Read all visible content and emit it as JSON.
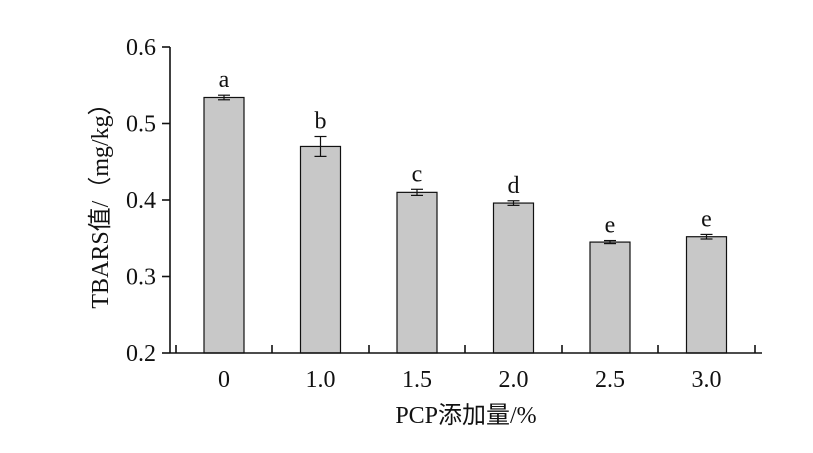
{
  "chart_data": {
    "type": "bar",
    "xlabel": "PCP添加量/%",
    "ylabel": "TBARS值/（mg/kg）",
    "categories": [
      "0",
      "1.0",
      "1.5",
      "2.0",
      "2.5",
      "3.0"
    ],
    "values": [
      0.534,
      0.47,
      0.41,
      0.396,
      0.345,
      0.352
    ],
    "errors": [
      0.003,
      0.013,
      0.004,
      0.003,
      0.002,
      0.003
    ],
    "significance": [
      "a",
      "b",
      "c",
      "d",
      "e",
      "e"
    ],
    "ylim": [
      0.2,
      0.6
    ],
    "yticks": [
      "0.2",
      "0.3",
      "0.4",
      "0.5",
      "0.6"
    ],
    "grid": false,
    "bar_color": "#c8c8c8"
  }
}
